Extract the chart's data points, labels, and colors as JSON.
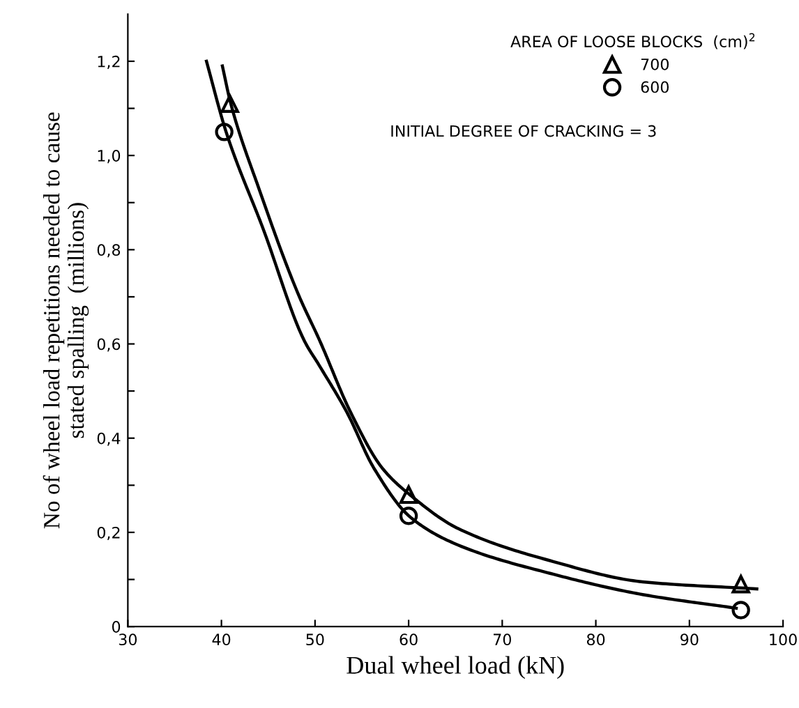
{
  "chart_data": {
    "type": "scatter",
    "xlabel": "Dual wheel load (kN)",
    "ylabel": "No of wheel load repetitions needed to cause\nstated spalling  (millions)",
    "legend_title": "AREA OF LOOSE BLOCKS  (cm)$^{2}$",
    "annotations": [
      "INITIAL DEGREE OF CRACKING = 3"
    ],
    "xlim": [
      30,
      100
    ],
    "xticks": [
      30,
      40,
      50,
      60,
      70,
      80,
      90,
      100
    ],
    "ylim": [
      0,
      1.3
    ],
    "yticks": [
      {
        "value": 0,
        "label": "0"
      },
      {
        "value": 0.1,
        "label": null
      },
      {
        "value": 0.2,
        "label": "0,2"
      },
      {
        "value": 0.3,
        "label": null
      },
      {
        "value": 0.4,
        "label": "0,4"
      },
      {
        "value": 0.5,
        "label": null
      },
      {
        "value": 0.6,
        "label": "0,6"
      },
      {
        "value": 0.7,
        "label": null
      },
      {
        "value": 0.8,
        "label": "0,8"
      },
      {
        "value": 0.9,
        "label": null
      },
      {
        "value": 1.0,
        "label": "1,0"
      },
      {
        "value": 1.1,
        "label": null
      },
      {
        "value": 1.2,
        "label": "1,2"
      }
    ],
    "grid": false,
    "legend": "top right",
    "series": [
      {
        "name": "700",
        "marker": "triangle",
        "color": "#000000",
        "x": [
          40.9,
          60,
          95.5
        ],
        "values": [
          1.11,
          0.28,
          0.09
        ]
      },
      {
        "name": "600",
        "marker": "circle",
        "color": "#000000",
        "x": [
          40.3,
          60,
          95.5
        ],
        "values": [
          1.05,
          0.235,
          0.035
        ]
      },
      {
        "type": "line",
        "marker": "none",
        "color": "#000000",
        "x": [
          40.1,
          41,
          44,
          48.2,
          50.5,
          53.8,
          57.2,
          60.3,
          65.3,
          75.1,
          85,
          97.2
        ],
        "values": [
          1.19,
          1.11,
          0.93,
          0.706,
          0.607,
          0.455,
          0.336,
          0.277,
          0.208,
          0.14,
          0.095,
          0.08
        ]
      },
      {
        "type": "line",
        "marker": "none",
        "color": "#000000",
        "x": [
          38.4,
          40.5,
          44.5,
          48.9,
          50.4,
          53.4,
          56.3,
          60.2,
          65.3,
          75.1,
          85,
          95
        ],
        "values": [
          1.2,
          1.05,
          0.842,
          0.605,
          0.556,
          0.455,
          0.336,
          0.232,
          0.173,
          0.113,
          0.068,
          0.039
        ]
      }
    ]
  }
}
